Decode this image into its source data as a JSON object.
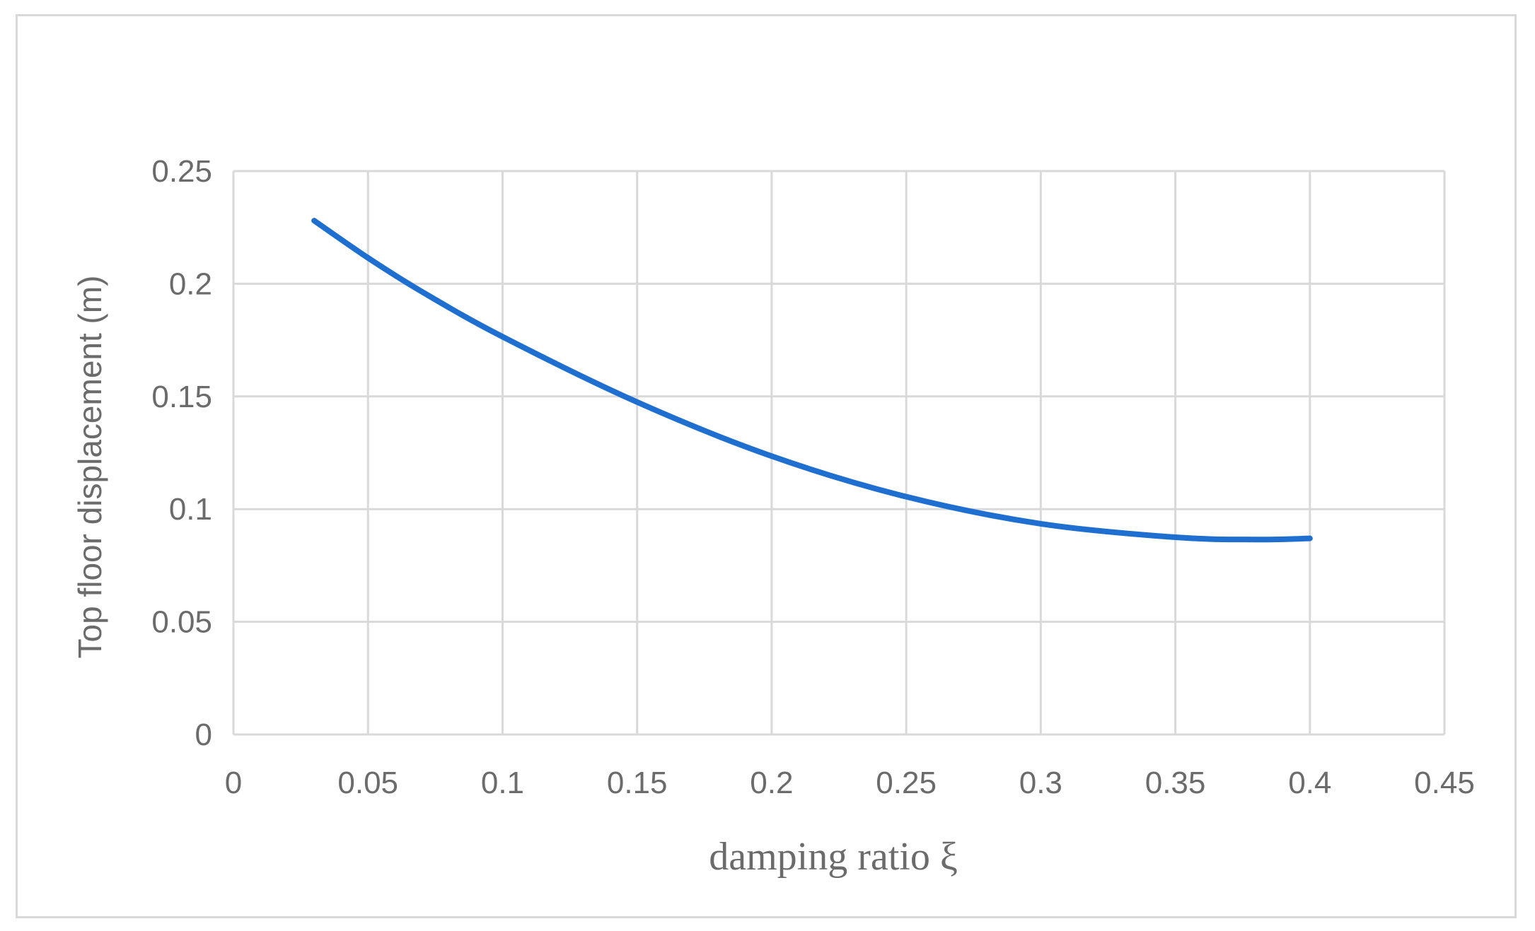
{
  "chart_data": {
    "type": "line",
    "title": "",
    "xlabel": "damping ratio ξ",
    "ylabel": "Top floor displacement (m)",
    "xlim": [
      0,
      0.45
    ],
    "ylim": [
      0,
      0.25
    ],
    "x_ticks": [
      0,
      0.05,
      0.1,
      0.15,
      0.2,
      0.25,
      0.3,
      0.35,
      0.4,
      0.45
    ],
    "y_ticks": [
      0,
      0.05,
      0.1,
      0.15,
      0.2,
      0.25
    ],
    "x_tick_labels": [
      "0",
      "0.05",
      "0.1",
      "0.15",
      "0.2",
      "0.25",
      "0.3",
      "0.35",
      "0.4",
      "0.45"
    ],
    "y_tick_labels": [
      "0",
      "0.05",
      "0.1",
      "0.15",
      "0.2",
      "0.25"
    ],
    "grid": true,
    "legend": "none",
    "series": [
      {
        "color": "#1f6fd0",
        "x": [
          0.03,
          0.05,
          0.07,
          0.1,
          0.15,
          0.2,
          0.25,
          0.3,
          0.35,
          0.38,
          0.4
        ],
        "y": [
          0.228,
          0.2115,
          0.1965,
          0.1765,
          0.1475,
          0.1235,
          0.1055,
          0.0935,
          0.0875,
          0.0865,
          0.087
        ]
      }
    ]
  }
}
